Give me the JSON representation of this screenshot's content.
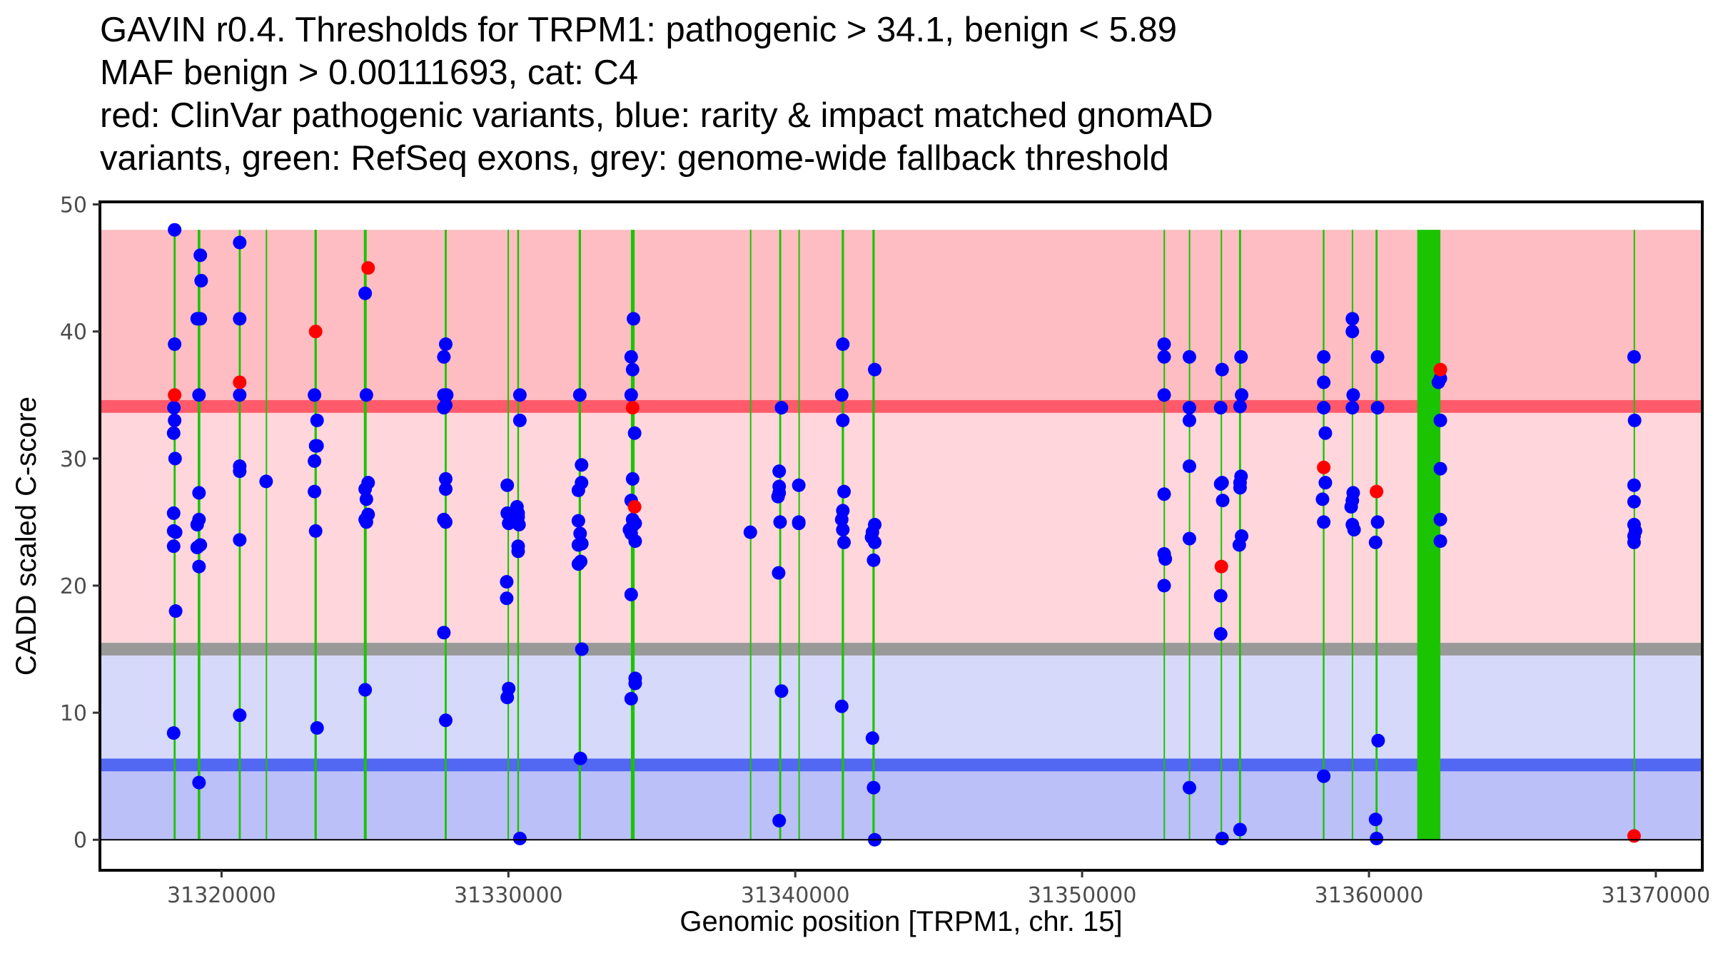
{
  "title_lines": [
    "GAVIN r0.4. Thresholds for TRPM1: pathogenic > 34.1, benign < 5.89",
    "MAF benign > 0.00111693, cat: C4",
    "red: ClinVar pathogenic variants, blue: rarity & impact matched gnomAD",
    "variants, green: RefSeq exons, grey: genome-wide fallback threshold"
  ],
  "colors": {
    "pathogenic_zone": "#FDBDC2",
    "pathogenic_threshold": "#FF5A6A",
    "pathogenic_lower_zone": "#FFD6DB",
    "fallback_threshold": "#999999",
    "benign_upper_zone": "#D6D9FA",
    "benign_threshold": "#5267F2",
    "benign_zone": "#BBC0F8",
    "exon": "#1BC400",
    "clinvar": "#FF0000",
    "gnomad": "#0000FF"
  },
  "chart_data": {
    "type": "scatter",
    "title": "GAVIN r0.4. Thresholds for TRPM1: pathogenic > 34.1, benign < 5.89",
    "xlabel": "Genomic position [TRPM1, chr. 15]",
    "ylabel": "CADD scaled C-score",
    "xlim": [
      31315760,
      31371620
    ],
    "ylim": [
      -2.4,
      50.2
    ],
    "x_ticks": [
      31320000,
      31330000,
      31340000,
      31350000,
      31360000,
      31370000
    ],
    "x_tick_labels": [
      "31320000",
      "31330000",
      "31340000",
      "31350000",
      "31360000",
      "31370000"
    ],
    "y_ticks": [
      0,
      10,
      20,
      30,
      40,
      50
    ],
    "y_tick_labels": [
      "0",
      "10",
      "20",
      "30",
      "40",
      "50"
    ],
    "grid": false,
    "thresholds": {
      "pathogenic": 34.1,
      "benign": 5.89,
      "fallback": 15,
      "pathogenic_zone_top": 48,
      "benign_zone_top": 14.5,
      "pathogenic_lower_zone_bottom": 15.5,
      "maf_benign": 0.00111693,
      "category": "C4"
    },
    "exons": [
      {
        "start": 31318330,
        "end": 31318400
      },
      {
        "start": 31319170,
        "end": 31319260
      },
      {
        "start": 31320600,
        "end": 31320670
      },
      {
        "start": 31321540,
        "end": 31321570
      },
      {
        "start": 31323240,
        "end": 31323320
      },
      {
        "start": 31324960,
        "end": 31325060
      },
      {
        "start": 31327780,
        "end": 31327850
      },
      {
        "start": 31329970,
        "end": 31330020
      },
      {
        "start": 31330310,
        "end": 31330370
      },
      {
        "start": 31332450,
        "end": 31332530
      },
      {
        "start": 31334270,
        "end": 31334400
      },
      {
        "start": 31338420,
        "end": 31338450
      },
      {
        "start": 31339440,
        "end": 31339510
      },
      {
        "start": 31340110,
        "end": 31340140
      },
      {
        "start": 31341620,
        "end": 31341700
      },
      {
        "start": 31342690,
        "end": 31342770
      },
      {
        "start": 31352840,
        "end": 31352880
      },
      {
        "start": 31353720,
        "end": 31353760
      },
      {
        "start": 31354830,
        "end": 31354880
      },
      {
        "start": 31355470,
        "end": 31355540
      },
      {
        "start": 31358390,
        "end": 31358450
      },
      {
        "start": 31359400,
        "end": 31359440
      },
      {
        "start": 31360230,
        "end": 31360300
      },
      {
        "start": 31361683,
        "end": 31362489
      },
      {
        "start": 31369225,
        "end": 31369260
      }
    ],
    "series": [
      {
        "name": "ClinVar pathogenic variants",
        "color": "red",
        "points": [
          [
            31318364,
            35.0
          ],
          [
            31320633,
            36.0
          ],
          [
            31323280,
            40.0
          ],
          [
            31325110,
            45.0
          ],
          [
            31334330,
            34.0
          ],
          [
            31334400,
            26.2
          ],
          [
            31354855,
            21.5
          ],
          [
            31358423,
            29.3
          ],
          [
            31360264,
            27.4
          ],
          [
            31362489,
            37.0
          ],
          [
            31369242,
            0.3
          ]
        ]
      },
      {
        "name": "rarity & impact matched gnomAD variants",
        "color": "blue",
        "points": [
          [
            31318364,
            48.0
          ],
          [
            31318364,
            39.0
          ],
          [
            31318340,
            34.0
          ],
          [
            31318364,
            33.0
          ],
          [
            31318330,
            32.0
          ],
          [
            31318380,
            30.0
          ],
          [
            31318330,
            25.7
          ],
          [
            31318330,
            24.3
          ],
          [
            31318400,
            24.2
          ],
          [
            31318330,
            23.1
          ],
          [
            31318400,
            18.0
          ],
          [
            31318330,
            8.4
          ],
          [
            31319260,
            46.0
          ],
          [
            31319290,
            44.0
          ],
          [
            31319150,
            41.0
          ],
          [
            31319260,
            41.0
          ],
          [
            31319214,
            35.0
          ],
          [
            31319214,
            27.3
          ],
          [
            31319214,
            25.2
          ],
          [
            31319150,
            24.8
          ],
          [
            31319150,
            23.0
          ],
          [
            31319260,
            23.2
          ],
          [
            31319214,
            21.5
          ],
          [
            31319214,
            4.5
          ],
          [
            31320633,
            47.0
          ],
          [
            31320633,
            41.0
          ],
          [
            31320633,
            35.0
          ],
          [
            31320633,
            29.4
          ],
          [
            31320633,
            29.0
          ],
          [
            31320633,
            23.6
          ],
          [
            31320633,
            9.8
          ],
          [
            31321554,
            28.2
          ],
          [
            31323240,
            35.0
          ],
          [
            31323330,
            33.0
          ],
          [
            31323280,
            31.0
          ],
          [
            31323330,
            31.0
          ],
          [
            31323240,
            29.8
          ],
          [
            31323240,
            27.4
          ],
          [
            31323280,
            24.3
          ],
          [
            31323330,
            8.8
          ],
          [
            31325007,
            43.0
          ],
          [
            31325050,
            35.0
          ],
          [
            31325110,
            28.1
          ],
          [
            31325007,
            27.6
          ],
          [
            31325050,
            26.8
          ],
          [
            31325110,
            25.6
          ],
          [
            31325007,
            25.2
          ],
          [
            31325050,
            25.0
          ],
          [
            31325007,
            11.8
          ],
          [
            31327815,
            39.0
          ],
          [
            31327750,
            38.0
          ],
          [
            31327750,
            35.0
          ],
          [
            31327850,
            35.0
          ],
          [
            31327750,
            34.0
          ],
          [
            31327815,
            34.2
          ],
          [
            31327815,
            28.4
          ],
          [
            31327815,
            27.6
          ],
          [
            31327750,
            25.2
          ],
          [
            31327815,
            25.0
          ],
          [
            31327750,
            16.3
          ],
          [
            31327815,
            9.4
          ],
          [
            31329960,
            27.9
          ],
          [
            31329960,
            25.7
          ],
          [
            31330010,
            24.9
          ],
          [
            31330300,
            26.2
          ],
          [
            31330340,
            25.4
          ],
          [
            31330280,
            25.0
          ],
          [
            31330340,
            25.7
          ],
          [
            31330370,
            24.8
          ],
          [
            31330340,
            23.1
          ],
          [
            31330340,
            22.7
          ],
          [
            31330400,
            35.0
          ],
          [
            31330400,
            33.0
          ],
          [
            31329940,
            20.3
          ],
          [
            31329940,
            19.0
          ],
          [
            31330010,
            11.9
          ],
          [
            31329960,
            11.2
          ],
          [
            31330400,
            0.1
          ],
          [
            31332489,
            35.0
          ],
          [
            31332550,
            29.5
          ],
          [
            31332550,
            28.1
          ],
          [
            31332440,
            27.5
          ],
          [
            31332440,
            25.1
          ],
          [
            31332500,
            24.1
          ],
          [
            31332560,
            23.3
          ],
          [
            31332440,
            23.2
          ],
          [
            31332440,
            21.7
          ],
          [
            31332520,
            21.9
          ],
          [
            31332560,
            15.0
          ],
          [
            31332510,
            6.4
          ],
          [
            31334360,
            41.0
          ],
          [
            31334280,
            38.0
          ],
          [
            31334330,
            37.0
          ],
          [
            31334280,
            35.0
          ],
          [
            31334400,
            32.0
          ],
          [
            31334330,
            28.4
          ],
          [
            31334280,
            26.7
          ],
          [
            31334330,
            25.2
          ],
          [
            31334420,
            24.9
          ],
          [
            31334330,
            24.7
          ],
          [
            31334220,
            24.4
          ],
          [
            31334280,
            24.1
          ],
          [
            31334420,
            23.5
          ],
          [
            31334280,
            19.3
          ],
          [
            31334420,
            12.7
          ],
          [
            31334420,
            12.3
          ],
          [
            31334280,
            11.1
          ],
          [
            31338434,
            24.2
          ],
          [
            31339520,
            34.0
          ],
          [
            31339440,
            29.0
          ],
          [
            31339440,
            27.8
          ],
          [
            31339440,
            27.3
          ],
          [
            31339400,
            27.0
          ],
          [
            31339471,
            25.0
          ],
          [
            31339420,
            21.0
          ],
          [
            31339520,
            11.7
          ],
          [
            31339440,
            1.5
          ],
          [
            31340123,
            27.9
          ],
          [
            31340123,
            25.0
          ],
          [
            31340123,
            24.9
          ],
          [
            31341658,
            39.0
          ],
          [
            31341620,
            35.0
          ],
          [
            31341658,
            33.0
          ],
          [
            31341700,
            27.4
          ],
          [
            31341658,
            25.9
          ],
          [
            31341620,
            25.2
          ],
          [
            31341658,
            24.4
          ],
          [
            31341700,
            23.4
          ],
          [
            31341620,
            10.5
          ],
          [
            31342770,
            37.0
          ],
          [
            31342770,
            24.8
          ],
          [
            31342690,
            24.2
          ],
          [
            31342770,
            23.4
          ],
          [
            31342660,
            23.8
          ],
          [
            31342731,
            22.0
          ],
          [
            31342690,
            8.0
          ],
          [
            31342731,
            4.1
          ],
          [
            31342770,
            0.0
          ],
          [
            31352860,
            39.0
          ],
          [
            31352860,
            38.0
          ],
          [
            31352860,
            35.0
          ],
          [
            31352860,
            27.2
          ],
          [
            31352860,
            22.5
          ],
          [
            31352900,
            22.1
          ],
          [
            31352860,
            20.0
          ],
          [
            31353741,
            38.0
          ],
          [
            31353741,
            34.0
          ],
          [
            31353741,
            33.0
          ],
          [
            31353741,
            29.4
          ],
          [
            31353741,
            23.7
          ],
          [
            31353741,
            4.1
          ],
          [
            31354880,
            37.0
          ],
          [
            31354830,
            34.0
          ],
          [
            31354880,
            28.1
          ],
          [
            31354830,
            28.0
          ],
          [
            31354900,
            26.7
          ],
          [
            31354830,
            19.2
          ],
          [
            31354830,
            16.2
          ],
          [
            31354880,
            0.1
          ],
          [
            31355540,
            38.0
          ],
          [
            31355560,
            35.0
          ],
          [
            31355506,
            34.1
          ],
          [
            31355540,
            28.6
          ],
          [
            31355506,
            28.1
          ],
          [
            31355506,
            27.7
          ],
          [
            31355560,
            23.9
          ],
          [
            31355480,
            23.2
          ],
          [
            31355506,
            0.8
          ],
          [
            31358423,
            38.0
          ],
          [
            31358423,
            36.0
          ],
          [
            31358423,
            34.0
          ],
          [
            31358480,
            32.0
          ],
          [
            31358480,
            28.1
          ],
          [
            31358380,
            26.8
          ],
          [
            31358423,
            25.0
          ],
          [
            31358423,
            5.0
          ],
          [
            31359421,
            41.0
          ],
          [
            31359421,
            40.0
          ],
          [
            31359450,
            35.0
          ],
          [
            31359421,
            34.0
          ],
          [
            31359450,
            27.3
          ],
          [
            31359421,
            26.7
          ],
          [
            31359380,
            26.2
          ],
          [
            31359421,
            24.8
          ],
          [
            31359480,
            24.4
          ],
          [
            31360300,
            38.0
          ],
          [
            31360300,
            34.0
          ],
          [
            31360300,
            25.0
          ],
          [
            31360230,
            23.4
          ],
          [
            31360320,
            7.8
          ],
          [
            31360230,
            1.6
          ],
          [
            31360264,
            0.1
          ],
          [
            31362489,
            36.3
          ],
          [
            31362420,
            36.0
          ],
          [
            31362489,
            33.0
          ],
          [
            31362489,
            29.2
          ],
          [
            31362489,
            25.2
          ],
          [
            31362489,
            23.5
          ],
          [
            31369242,
            38.0
          ],
          [
            31369260,
            33.0
          ],
          [
            31369242,
            27.9
          ],
          [
            31369242,
            26.6
          ],
          [
            31369242,
            24.8
          ],
          [
            31369290,
            24.3
          ],
          [
            31369242,
            23.9
          ],
          [
            31369242,
            23.4
          ]
        ]
      }
    ]
  }
}
